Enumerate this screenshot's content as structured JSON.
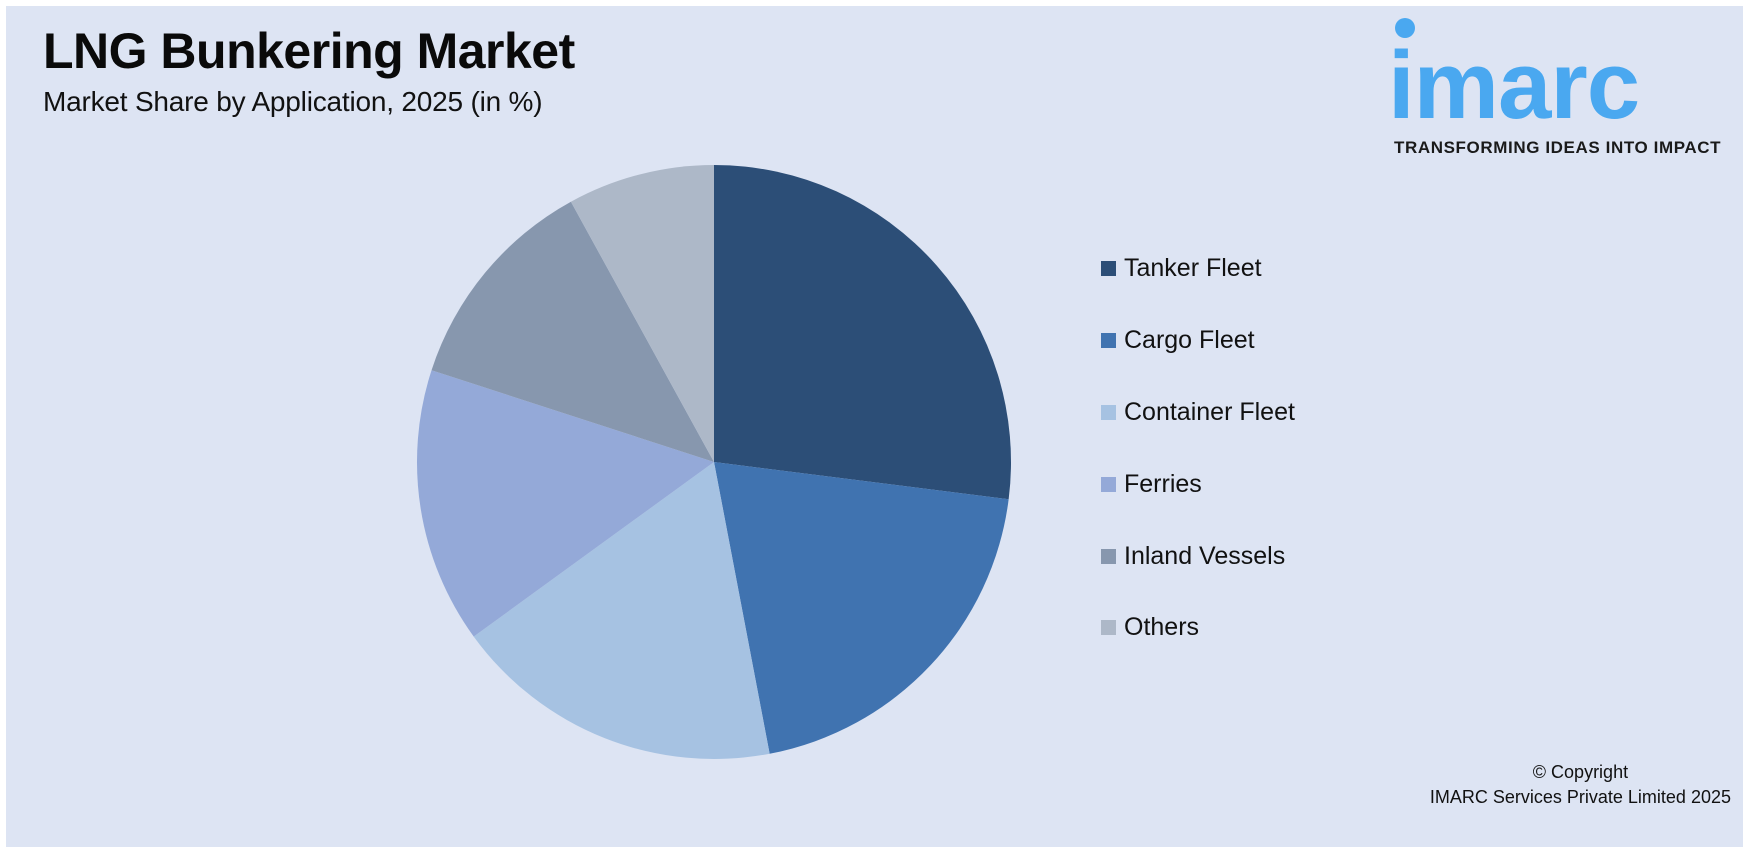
{
  "header": {
    "title": "LNG Bunkering Market",
    "subtitle": "Market Share by Application, 2025 (in %)"
  },
  "logo": {
    "wordmark": "imarc",
    "tagline": "TRANSFORMING IDEAS INTO IMPACT",
    "color": "#4aa8f0"
  },
  "footer": {
    "copyright": "© Copyright",
    "company": "IMARC Services Private Limited 2025"
  },
  "colors": {
    "background": "#dde4f3"
  },
  "chart_data": {
    "type": "pie",
    "title": "LNG Bunkering Market",
    "subtitle": "Market Share by Application, 2025 (in %)",
    "categories": [
      "Tanker Fleet",
      "Cargo Fleet",
      "Container Fleet",
      "Ferries",
      "Inland Vessels",
      "Others"
    ],
    "values": [
      27,
      20,
      18,
      15,
      12,
      8
    ],
    "colors": [
      "#2c4e77",
      "#4073b0",
      "#a6c2e2",
      "#94a9d8",
      "#8797ae",
      "#adb8c8"
    ],
    "start_angle": "12 o'clock, clockwise",
    "legend_position": "right",
    "data_labels": false
  },
  "legend": {
    "items": [
      {
        "label": "Tanker Fleet",
        "color": "#2c4e77"
      },
      {
        "label": "Cargo Fleet",
        "color": "#4073b0"
      },
      {
        "label": "Container Fleet",
        "color": "#a6c2e2"
      },
      {
        "label": "Ferries",
        "color": "#94a9d8"
      },
      {
        "label": "Inland Vessels",
        "color": "#8797ae"
      },
      {
        "label": "Others",
        "color": "#adb8c8"
      }
    ]
  }
}
